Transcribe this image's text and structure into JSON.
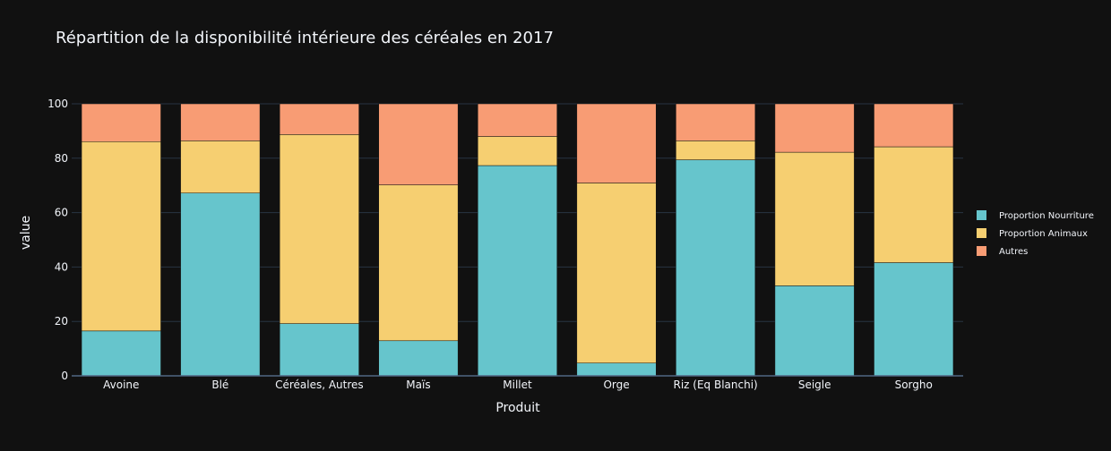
{
  "chart_data": {
    "type": "bar",
    "stacked": true,
    "title": "Répartition de la disponibilité intérieure des céréales en 2017",
    "xlabel": "Produit",
    "ylabel": "value",
    "ylim": [
      0,
      100
    ],
    "yticks": [
      0,
      20,
      40,
      60,
      80,
      100
    ],
    "grid": true,
    "legend_position": "right",
    "categories": [
      "Avoine",
      "Blé",
      "Céréales, Autres",
      "Maïs",
      "Millet",
      "Orge",
      "Riz (Eq Blanchi)",
      "Seigle",
      "Sorgho"
    ],
    "series": [
      {
        "name": "Proportion Nourriture",
        "color": "#66c5cc",
        "values": [
          16.5,
          67.2,
          19.2,
          12.9,
          77.3,
          4.7,
          79.4,
          33.1,
          41.6
        ]
      },
      {
        "name": "Proportion Animaux",
        "color": "#f6cf71",
        "values": [
          69.6,
          19.2,
          69.5,
          57.3,
          10.7,
          66.2,
          7.0,
          49.1,
          42.6
        ]
      },
      {
        "name": "Autres",
        "color": "#f89c74",
        "values": [
          13.9,
          13.6,
          11.3,
          29.8,
          12.0,
          29.1,
          13.6,
          17.8,
          15.8
        ]
      }
    ]
  }
}
